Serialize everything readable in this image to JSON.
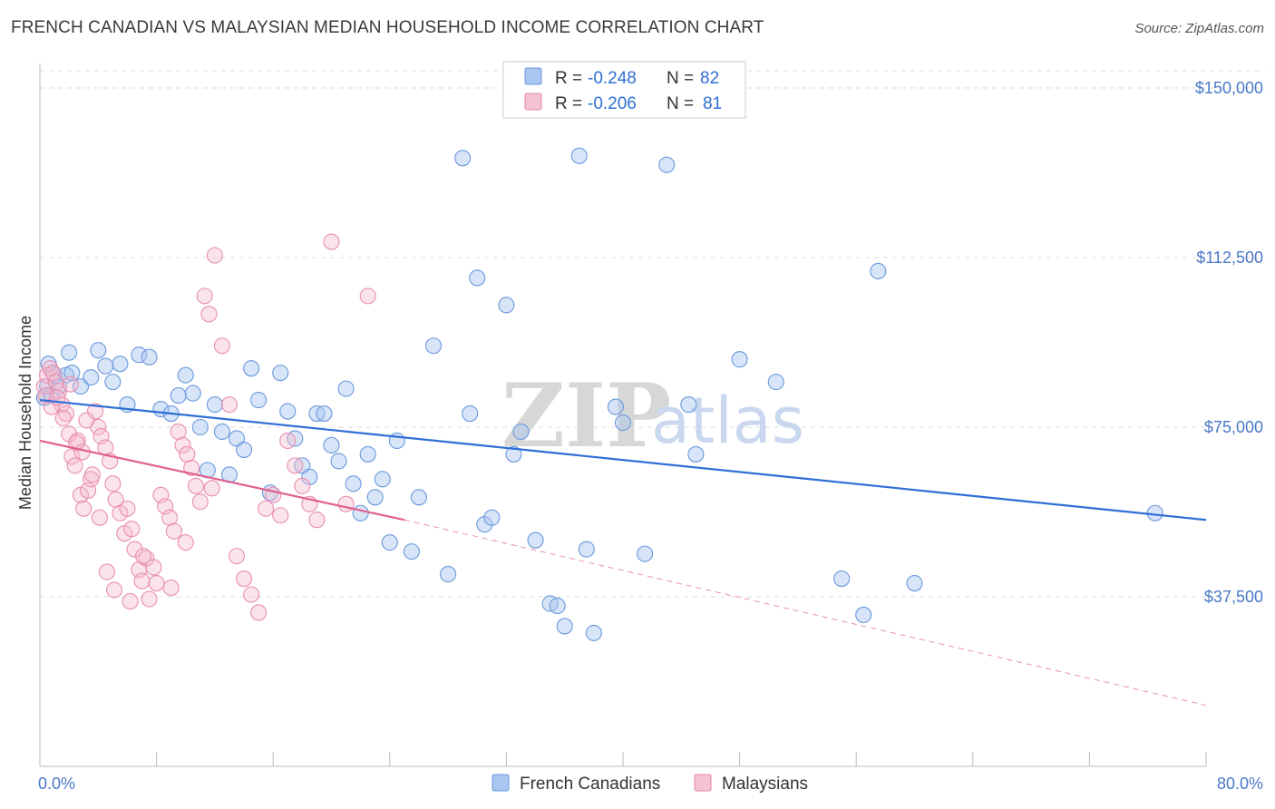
{
  "title": "FRENCH CANADIAN VS MALAYSIAN MEDIAN HOUSEHOLD INCOME CORRELATION CHART",
  "source": "Source: ZipAtlas.com",
  "watermark": {
    "zip": "ZIP",
    "atlas": "atlas"
  },
  "colors": {
    "blue": "#2f6fd6",
    "blue_fill": "#a9c6f0",
    "pink": "#e0608f",
    "pink_fill": "#f5b8cc",
    "grid": "#dddddd"
  },
  "legend": {
    "rows": [
      {
        "r_label": "R =",
        "r_value": "-0.248",
        "n_label": "N =",
        "n_value": "82"
      },
      {
        "r_label": "R =",
        "r_value": "-0.206",
        "n_label": "N =",
        "n_value": "81"
      }
    ]
  },
  "chart_data": {
    "type": "scatter",
    "title": "FRENCH CANADIAN VS MALAYSIAN MEDIAN HOUSEHOLD INCOME CORRELATION CHART",
    "xlabel": "",
    "ylabel": "Median Household Income",
    "xlim": [
      0,
      80
    ],
    "ylim": [
      0,
      155000
    ],
    "x_tick_labels": [
      "0.0%",
      "80.0%"
    ],
    "y_ticks": [
      37500,
      75000,
      112500,
      150000
    ],
    "y_tick_labels": [
      "$37,500",
      "$75,000",
      "$112,500",
      "$150,000"
    ],
    "grid": true,
    "legend_position": "top-center",
    "series": [
      {
        "name": "French Canadians",
        "color": "#2f6fd6",
        "trend": {
          "x": [
            0,
            80
          ],
          "y": [
            81000,
            54500
          ]
        },
        "points": [
          [
            0.3,
            81500
          ],
          [
            0.5,
            84000
          ],
          [
            0.8,
            82000
          ],
          [
            1.0,
            86500
          ],
          [
            1.3,
            84000
          ],
          [
            1.8,
            86500
          ],
          [
            2.2,
            87000
          ],
          [
            2.8,
            84000
          ],
          [
            3.5,
            86000
          ],
          [
            4.0,
            92000
          ],
          [
            4.5,
            88500
          ],
          [
            5.0,
            85000
          ],
          [
            5.5,
            89000
          ],
          [
            6.0,
            80000
          ],
          [
            6.8,
            91000
          ],
          [
            7.5,
            90500
          ],
          [
            8.3,
            79000
          ],
          [
            9.0,
            78000
          ],
          [
            9.5,
            82000
          ],
          [
            10.0,
            86500
          ],
          [
            10.5,
            82500
          ],
          [
            11.0,
            75000
          ],
          [
            11.5,
            65500
          ],
          [
            12.0,
            80000
          ],
          [
            12.5,
            74000
          ],
          [
            13.0,
            64500
          ],
          [
            13.5,
            72500
          ],
          [
            14.0,
            70000
          ],
          [
            14.5,
            88000
          ],
          [
            15.0,
            81000
          ],
          [
            15.8,
            60500
          ],
          [
            16.5,
            87000
          ],
          [
            17.0,
            78500
          ],
          [
            17.5,
            72500
          ],
          [
            18.0,
            66500
          ],
          [
            18.5,
            64000
          ],
          [
            19.0,
            78000
          ],
          [
            19.5,
            78000
          ],
          [
            20.0,
            71000
          ],
          [
            20.5,
            67500
          ],
          [
            21.0,
            83500
          ],
          [
            21.5,
            62500
          ],
          [
            22.0,
            56000
          ],
          [
            22.5,
            69000
          ],
          [
            23.0,
            59500
          ],
          [
            23.5,
            63500
          ],
          [
            24.0,
            49500
          ],
          [
            24.5,
            72000
          ],
          [
            25.5,
            47500
          ],
          [
            26.0,
            59500
          ],
          [
            27.0,
            93000
          ],
          [
            28.0,
            42500
          ],
          [
            29.0,
            134500
          ],
          [
            29.5,
            78000
          ],
          [
            30.0,
            108000
          ],
          [
            30.5,
            53500
          ],
          [
            31.0,
            55000
          ],
          [
            32.0,
            102000
          ],
          [
            32.5,
            69000
          ],
          [
            33.0,
            74000
          ],
          [
            34.0,
            50000
          ],
          [
            35.0,
            36000
          ],
          [
            35.5,
            35500
          ],
          [
            36.0,
            31000
          ],
          [
            37.0,
            135000
          ],
          [
            37.5,
            48000
          ],
          [
            38.0,
            29500
          ],
          [
            39.5,
            79500
          ],
          [
            40.0,
            76000
          ],
          [
            41.5,
            47000
          ],
          [
            43.0,
            133000
          ],
          [
            44.5,
            80000
          ],
          [
            45.0,
            69000
          ],
          [
            48.0,
            90000
          ],
          [
            50.5,
            85000
          ],
          [
            55.0,
            41500
          ],
          [
            56.5,
            33500
          ],
          [
            57.5,
            109500
          ],
          [
            60.0,
            40500
          ],
          [
            76.5,
            56000
          ],
          [
            0.6,
            89000
          ],
          [
            2.0,
            91500
          ]
        ]
      },
      {
        "name": "Malaysians",
        "color": "#e0608f",
        "trend": {
          "x": [
            0,
            25
          ],
          "y": [
            72000,
            54500
          ]
        },
        "trend_extension": {
          "x": [
            25,
            80
          ],
          "y": [
            54500,
            13500
          ]
        },
        "points": [
          [
            0.3,
            84000
          ],
          [
            0.5,
            86500
          ],
          [
            0.7,
            88000
          ],
          [
            0.9,
            87000
          ],
          [
            1.1,
            85000
          ],
          [
            1.3,
            83000
          ],
          [
            1.5,
            80000
          ],
          [
            1.8,
            78000
          ],
          [
            2.0,
            73500
          ],
          [
            2.2,
            68500
          ],
          [
            2.4,
            66500
          ],
          [
            2.6,
            72000
          ],
          [
            2.8,
            60000
          ],
          [
            3.0,
            57000
          ],
          [
            3.3,
            61000
          ],
          [
            3.5,
            63500
          ],
          [
            3.8,
            78500
          ],
          [
            4.0,
            75000
          ],
          [
            4.2,
            73000
          ],
          [
            4.5,
            70500
          ],
          [
            4.8,
            67500
          ],
          [
            5.0,
            62500
          ],
          [
            5.2,
            59000
          ],
          [
            5.5,
            56000
          ],
          [
            5.8,
            51500
          ],
          [
            6.0,
            57000
          ],
          [
            6.3,
            52500
          ],
          [
            6.5,
            48000
          ],
          [
            6.8,
            43500
          ],
          [
            7.0,
            41000
          ],
          [
            7.3,
            46000
          ],
          [
            7.5,
            37000
          ],
          [
            7.8,
            44000
          ],
          [
            8.0,
            40500
          ],
          [
            8.3,
            60000
          ],
          [
            8.6,
            57500
          ],
          [
            8.9,
            55000
          ],
          [
            9.2,
            52000
          ],
          [
            9.5,
            74000
          ],
          [
            9.8,
            71000
          ],
          [
            10.1,
            69000
          ],
          [
            10.4,
            66000
          ],
          [
            10.7,
            62000
          ],
          [
            11.0,
            58500
          ],
          [
            11.3,
            104000
          ],
          [
            11.6,
            100000
          ],
          [
            12.0,
            113000
          ],
          [
            12.5,
            93000
          ],
          [
            13.0,
            80000
          ],
          [
            13.5,
            46500
          ],
          [
            14.0,
            41500
          ],
          [
            14.5,
            38000
          ],
          [
            15.0,
            34000
          ],
          [
            15.5,
            57000
          ],
          [
            16.0,
            60000
          ],
          [
            16.5,
            55500
          ],
          [
            17.0,
            72000
          ],
          [
            17.5,
            66500
          ],
          [
            18.0,
            62000
          ],
          [
            18.5,
            58000
          ],
          [
            19.0,
            54500
          ],
          [
            20.0,
            116000
          ],
          [
            21.0,
            58000
          ],
          [
            22.5,
            104000
          ],
          [
            0.4,
            82000
          ],
          [
            0.8,
            79500
          ],
          [
            1.2,
            81500
          ],
          [
            1.6,
            77000
          ],
          [
            2.1,
            84500
          ],
          [
            2.5,
            71500
          ],
          [
            2.9,
            69500
          ],
          [
            3.2,
            76500
          ],
          [
            3.6,
            64500
          ],
          [
            4.1,
            55000
          ],
          [
            4.6,
            43000
          ],
          [
            5.1,
            39000
          ],
          [
            6.2,
            36500
          ],
          [
            7.1,
            46500
          ],
          [
            9.0,
            39500
          ],
          [
            10.0,
            49500
          ],
          [
            11.8,
            61500
          ]
        ]
      }
    ]
  },
  "bottom_legend": [
    {
      "label": "French Canadians"
    },
    {
      "label": "Malaysians"
    }
  ]
}
